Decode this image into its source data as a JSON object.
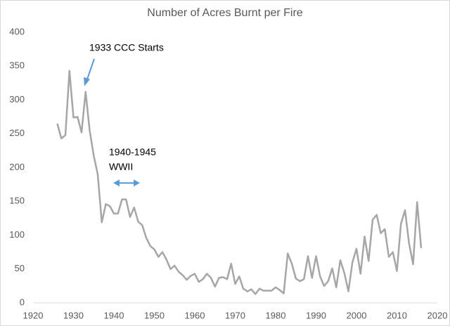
{
  "chart_data": {
    "type": "line",
    "title": "Number of Acres Burnt per Fire",
    "x": [
      1926,
      1927,
      1928,
      1929,
      1930,
      1931,
      1932,
      1933,
      1934,
      1935,
      1936,
      1937,
      1938,
      1939,
      1940,
      1941,
      1942,
      1943,
      1944,
      1945,
      1946,
      1947,
      1948,
      1949,
      1950,
      1951,
      1952,
      1953,
      1954,
      1955,
      1956,
      1957,
      1958,
      1959,
      1960,
      1961,
      1962,
      1963,
      1964,
      1965,
      1966,
      1967,
      1968,
      1969,
      1970,
      1971,
      1972,
      1973,
      1974,
      1975,
      1976,
      1977,
      1978,
      1979,
      1980,
      1981,
      1982,
      1983,
      1984,
      1985,
      1986,
      1987,
      1988,
      1989,
      1990,
      1991,
      1992,
      1993,
      1994,
      1995,
      1996,
      1997,
      1998,
      1999,
      2000,
      2001,
      2002,
      2003,
      2004,
      2005,
      2006,
      2007,
      2008,
      2009,
      2010,
      2011,
      2012,
      2013,
      2014,
      2015,
      2016
    ],
    "values": [
      265,
      243,
      248,
      343,
      274,
      275,
      252,
      312,
      255,
      218,
      190,
      119,
      146,
      143,
      132,
      132,
      153,
      153,
      127,
      141,
      120,
      115,
      96,
      84,
      79,
      68,
      75,
      64,
      50,
      55,
      46,
      41,
      34,
      40,
      43,
      31,
      35,
      43,
      37,
      24,
      37,
      38,
      35,
      58,
      28,
      39,
      21,
      17,
      20,
      13,
      21,
      18,
      18,
      18,
      23,
      19,
      14,
      73,
      58,
      36,
      32,
      35,
      69,
      37,
      69,
      39,
      25,
      32,
      51,
      23,
      63,
      44,
      17,
      60,
      80,
      43,
      98,
      62,
      123,
      130,
      103,
      109,
      68,
      75,
      47,
      117,
      137,
      88,
      57,
      149,
      81
    ],
    "color": "#a6a6a6",
    "xlim": [
      1920,
      2020
    ],
    "xticks": [
      1920,
      1930,
      1940,
      1950,
      1960,
      1970,
      1980,
      1990,
      2000,
      2010,
      2020
    ],
    "ylim": [
      0,
      400
    ],
    "yticks": [
      0,
      50,
      100,
      150,
      200,
      250,
      300,
      350,
      400
    ],
    "annotations": [
      "1933 CCC Starts",
      "1940-1945",
      "WWII"
    ]
  }
}
